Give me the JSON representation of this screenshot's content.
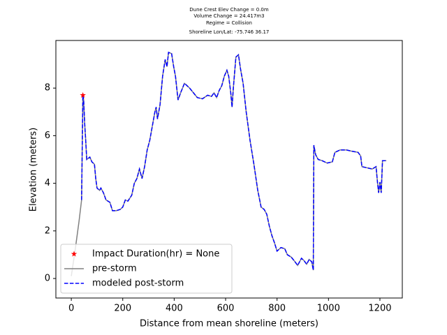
{
  "chart_data": {
    "type": "line",
    "title_lines": [
      "Dune Crest Elev Change = 0.0m",
      "Volume Change = 24.417m3",
      "Regime = Collision",
      "Shoreline Lon/Lat: -75.746 36.17"
    ],
    "xlabel": "Distance from mean shoreline (meters)",
    "ylabel": "Elevation (meters)",
    "xlim": [
      -60,
      1287
    ],
    "ylim": [
      -0.82,
      10.0
    ],
    "xticks": [
      0,
      200,
      400,
      600,
      800,
      1000,
      1200
    ],
    "yticks": [
      0,
      2,
      4,
      6,
      8
    ],
    "legend": "lower left",
    "markers": {
      "name": "Impact Duration(hr) = None",
      "color": "#ff0000",
      "x": [
        45
      ],
      "values": [
        7.7
      ]
    },
    "x": [
      0,
      15,
      30,
      40,
      45,
      48,
      52,
      56,
      60,
      66,
      72,
      80,
      90,
      95,
      100,
      110,
      115,
      125,
      135,
      150,
      160,
      175,
      190,
      200,
      210,
      220,
      235,
      245,
      255,
      265,
      275,
      285,
      295,
      305,
      315,
      325,
      330,
      335,
      345,
      355,
      365,
      372,
      378,
      390,
      398,
      405,
      415,
      425,
      440,
      460,
      475,
      490,
      510,
      530,
      545,
      555,
      565,
      575,
      585,
      595,
      605,
      612,
      620,
      625,
      630,
      640,
      650,
      658,
      668,
      680,
      695,
      710,
      725,
      738,
      750,
      760,
      770,
      780,
      790,
      800,
      815,
      830,
      840,
      855,
      870,
      880,
      895,
      905,
      915,
      925,
      935,
      941,
      943,
      950,
      960,
      975,
      995,
      1015,
      1025,
      1045,
      1070,
      1090,
      1115,
      1125,
      1130,
      1150,
      1170,
      1185,
      1190,
      1195,
      1200,
      1205,
      1210,
      1225
    ],
    "series": [
      {
        "name": "pre-storm",
        "color": "#808080",
        "dash": false,
        "values": [
          0.1,
          1.2,
          2.4,
          3.3,
          7.7,
          7.5,
          6.5,
          5.8,
          5.0,
          5.05,
          5.1,
          4.9,
          4.8,
          4.2,
          3.8,
          3.7,
          3.8,
          3.6,
          3.3,
          3.2,
          2.85,
          2.85,
          2.9,
          3.0,
          3.3,
          3.25,
          3.5,
          4.0,
          4.2,
          4.6,
          4.2,
          4.7,
          5.4,
          5.8,
          6.4,
          7.0,
          7.2,
          6.7,
          7.3,
          8.5,
          9.2,
          8.9,
          9.5,
          9.45,
          8.9,
          8.5,
          7.5,
          7.8,
          8.2,
          8.0,
          7.8,
          7.6,
          7.55,
          7.7,
          7.65,
          7.8,
          7.6,
          7.9,
          8.1,
          8.5,
          8.75,
          8.5,
          7.8,
          7.2,
          8.0,
          9.3,
          9.4,
          8.8,
          8.2,
          7.0,
          5.8,
          4.8,
          3.7,
          3.0,
          2.9,
          2.7,
          2.2,
          1.8,
          1.5,
          1.15,
          1.3,
          1.25,
          1.0,
          0.9,
          0.7,
          0.55,
          0.85,
          0.75,
          0.6,
          0.8,
          0.7,
          0.35,
          5.6,
          5.2,
          5.0,
          4.95,
          4.85,
          4.9,
          5.3,
          5.4,
          5.4,
          5.35,
          5.3,
          5.15,
          4.7,
          4.65,
          4.6,
          4.7,
          4.1,
          3.6,
          4.05,
          3.6,
          4.95,
          4.95
        ]
      },
      {
        "name": "modeled post-storm",
        "color": "#0000ff",
        "dash": true,
        "values": [
          null,
          null,
          null,
          3.3,
          7.7,
          7.5,
          6.5,
          5.8,
          5.0,
          5.05,
          5.1,
          4.9,
          4.8,
          4.2,
          3.8,
          3.7,
          3.8,
          3.6,
          3.3,
          3.2,
          2.85,
          2.85,
          2.9,
          3.0,
          3.3,
          3.25,
          3.5,
          4.0,
          4.2,
          4.6,
          4.2,
          4.7,
          5.4,
          5.8,
          6.4,
          7.0,
          7.2,
          6.7,
          7.3,
          8.5,
          9.2,
          8.9,
          9.5,
          9.45,
          8.9,
          8.5,
          7.5,
          7.8,
          8.2,
          8.0,
          7.8,
          7.6,
          7.55,
          7.7,
          7.65,
          7.8,
          7.6,
          7.9,
          8.1,
          8.5,
          8.75,
          8.5,
          7.8,
          7.2,
          8.0,
          9.3,
          9.4,
          8.8,
          8.2,
          7.0,
          5.8,
          4.8,
          3.7,
          3.0,
          2.9,
          2.7,
          2.2,
          1.8,
          1.5,
          1.15,
          1.3,
          1.25,
          1.0,
          0.9,
          0.7,
          0.55,
          0.85,
          0.75,
          0.6,
          0.8,
          0.7,
          0.35,
          5.6,
          5.2,
          5.0,
          4.95,
          4.85,
          4.9,
          5.3,
          5.4,
          5.4,
          5.35,
          5.3,
          5.15,
          4.7,
          4.65,
          4.6,
          4.7,
          4.1,
          3.6,
          4.05,
          3.6,
          4.95,
          4.95
        ]
      }
    ]
  }
}
